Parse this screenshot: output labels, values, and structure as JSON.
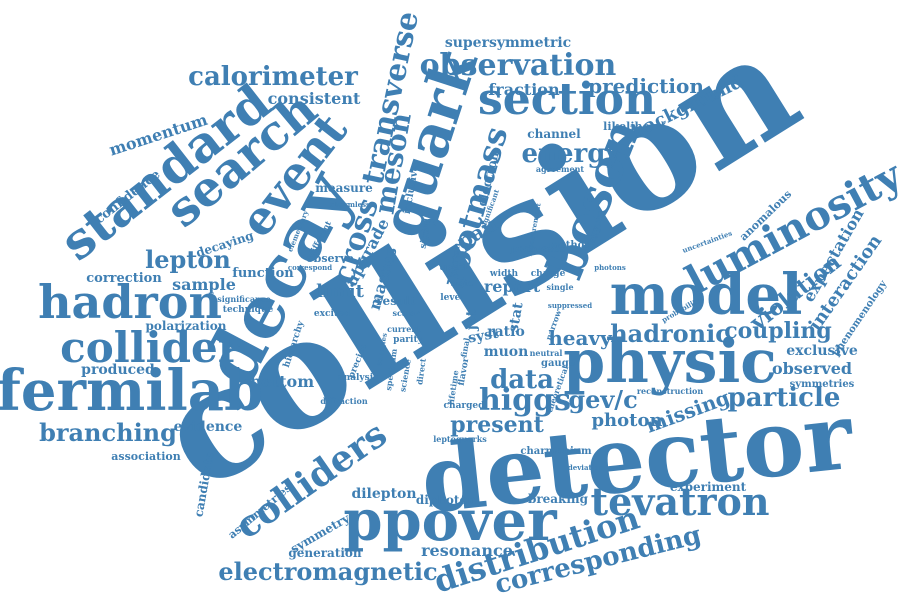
{
  "color": "#3f7fb3",
  "words": {
    "collision": "collision",
    "detector": "detector",
    "model": "model",
    "physic": "physic",
    "decay": "decay",
    "boson": "boson",
    "fermilab": "fermilab",
    "standard": "standard",
    "search": "search",
    "event": "event",
    "quark": "quark",
    "section": "section",
    "observation": "observation",
    "calorimeter": "calorimeter",
    "transverse": "transverse",
    "meson": "meson",
    "luminosity": "luminosity",
    "hadron": "hadron",
    "collider": "collider",
    "colliders": "colliders",
    "ppover": "ppover",
    "tevatron": "tevatron",
    "distribution": "distribution",
    "corresponding": "corresponding",
    "electromagnetic": "electromagnetic",
    "branching": "branching",
    "higgs": "higgs",
    "data": "data",
    "particle": "particle",
    "energy": "energy",
    "cross": "cross",
    "rootmass": "rootmass",
    "lepton": "lepton",
    "hadronic": "hadronic",
    "coupling": "coupling",
    "violation": "violation",
    "interaction": "interaction",
    "expectation": "expectation",
    "exclusive": "exclusive",
    "observed": "observed",
    "symmetries": "symmetries",
    "gev_c": "gev/c",
    "missing": "missing",
    "photon": "photon",
    "present": "present",
    "resonance": "resonance",
    "generation": "generation",
    "symmetry": "symmetry",
    "asymmetries": "asymmetries",
    "dilepton": "dilepton",
    "diphoton": "diphoton",
    "experiment": "experiment",
    "breaking": "breaking",
    "charmonium": "charmonium",
    "candidate": "candidate",
    "evidence": "evidence",
    "association": "association",
    "bottom": "bottom",
    "produced": "produced",
    "polarization": "polarization",
    "correction": "correction",
    "sample": "sample",
    "decaying": "decaying",
    "confidence": "confidence",
    "momentum": "momentum",
    "function": "function",
    "consistent": "consistent",
    "supersymmetric": "supersymmetric",
    "fraction": "fraction",
    "prediction": "prediction",
    "background": "background",
    "likelihood": "likelihood",
    "channel": "channel",
    "anomalous": "anomalous",
    "phenomenology": "phenomenology",
    "limit": "limit",
    "upgrade": "upgrade",
    "masses": "masses",
    "pair": "pair",
    "report": "report",
    "result": "result",
    "heavy": "heavy",
    "muon": "muon",
    "jet": "jet",
    "ratio": "ratio",
    "syst": "syst",
    "stat": "stat",
    "measure": "measure",
    "observe": "observe",
    "electron": "electron",
    "inclusive": "inclusive",
    "agreement": "agreement",
    "processes": "processes",
    "method": "method",
    "baryon": "baryon",
    "width": "width",
    "charge": "charge",
    "single": "single",
    "gauge": "gauge",
    "neutral": "neutral",
    "charged": "charged",
    "flavor": "flavor",
    "lifetime": "lifetime",
    "upper": "upper",
    "level": "level",
    "signal": "signal",
    "parton": "parton",
    "state": "state",
    "technique": "technique",
    "significance": "significance",
    "excited": "excited",
    "parity": "parity",
    "scalar": "scalar",
    "current": "current",
    "final": "final",
    "theoretical": "theoretical",
    "spectrum": "spectrum",
    "science": "science",
    "reconstruction": "reconstruction",
    "hierarchy": "hierarchy",
    "analysis": "analysis",
    "precise": "precise",
    "diffraction": "diffraction",
    "leptoquarks": "leptoquarks",
    "narrow": "narrow",
    "direct": "direct",
    "charmless": "charmless",
    "significant": "significant",
    "deviation": "deviation",
    "uncertainties": "uncertainties",
    "probability": "probability",
    "elementary": "elementary",
    "different": "different",
    "higgs_small": "higgs",
    "energies": "energies",
    "measurement": "measurement",
    "suppressed": "suppressed",
    "correspond": "correspond",
    "photons": "photons"
  }
}
